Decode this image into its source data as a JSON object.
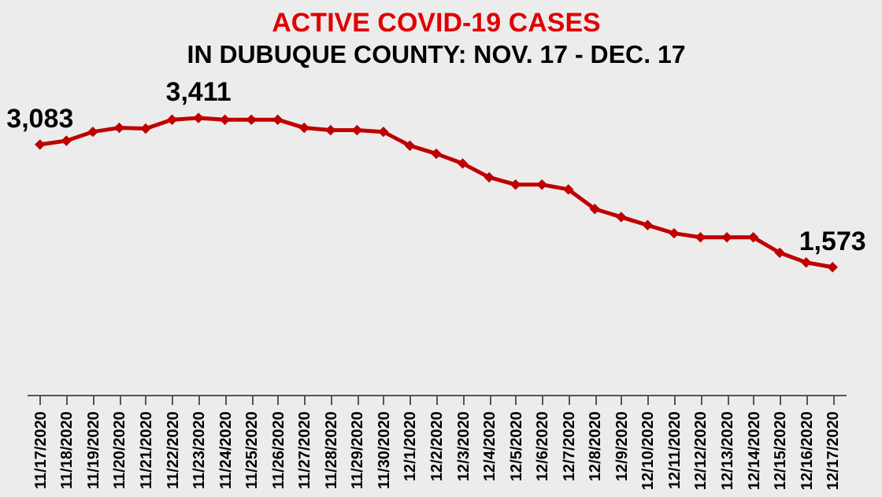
{
  "chart_data": {
    "type": "line",
    "title": "ACTIVE COVID-19 CASES",
    "subtitle": "IN DUBUQUE COUNTY: NOV. 17 - DEC. 17",
    "categories": [
      "11/17/2020",
      "11/18/2020",
      "11/19/2020",
      "11/20/2020",
      "11/21/2020",
      "11/22/2020",
      "11/23/2020",
      "11/24/2020",
      "11/25/2020",
      "11/26/2020",
      "11/27/2020",
      "11/28/2020",
      "11/29/2020",
      "11/30/2020",
      "12/1/2020",
      "12/2/2020",
      "12/3/2020",
      "12/4/2020",
      "12/5/2020",
      "12/6/2020",
      "12/7/2020",
      "12/8/2020",
      "12/9/2020",
      "12/10/2020",
      "12/11/2020",
      "12/12/2020",
      "12/13/2020",
      "12/14/2020",
      "12/15/2020",
      "12/16/2020",
      "12/17/2020"
    ],
    "series": [
      {
        "color": "#c00000",
        "values": [
          3083,
          3130,
          3240,
          3290,
          3280,
          3390,
          3411,
          3390,
          3390,
          3390,
          3290,
          3260,
          3260,
          3240,
          3070,
          2970,
          2850,
          2680,
          2590,
          2590,
          2530,
          2290,
          2190,
          2090,
          1990,
          1940,
          1940,
          1940,
          1750,
          1630,
          1573
        ],
        "value_labels": [
          "3,083",
          null,
          null,
          null,
          null,
          null,
          "3,411",
          null,
          null,
          null,
          null,
          null,
          null,
          null,
          null,
          null,
          null,
          null,
          null,
          null,
          null,
          null,
          null,
          null,
          null,
          null,
          null,
          null,
          null,
          null,
          "1,573"
        ]
      }
    ],
    "tick_labels": "x",
    "marker": "diamond",
    "grid": false
  }
}
